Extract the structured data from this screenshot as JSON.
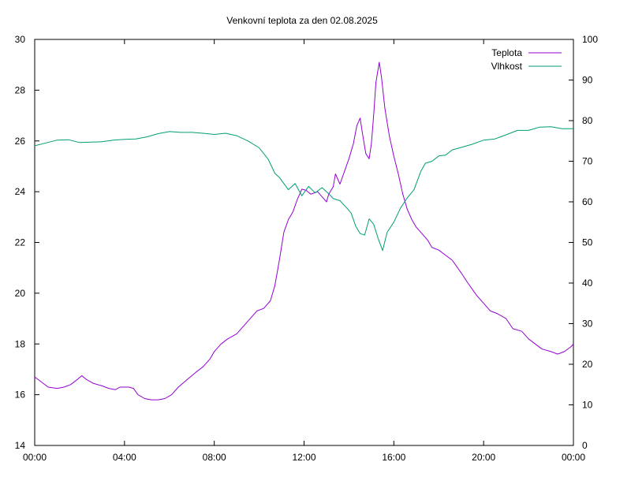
{
  "chart_data": {
    "type": "line",
    "title": "Venkovní teplota za den 02.08.2025",
    "xlabel": "",
    "ylabel": "",
    "y2label": "",
    "x_ticks": [
      "00:00",
      "04:00",
      "08:00",
      "12:00",
      "16:00",
      "20:00",
      "00:00"
    ],
    "x_range_hours": [
      0,
      24
    ],
    "y_ticks": [
      "14",
      "16",
      "18",
      "20",
      "22",
      "24",
      "26",
      "28",
      "30"
    ],
    "ylim": [
      14,
      30
    ],
    "y2_ticks": [
      "0",
      "10",
      "20",
      "30",
      "40",
      "50",
      "60",
      "70",
      "80",
      "90",
      "100"
    ],
    "y2lim": [
      0,
      100
    ],
    "grid": false,
    "legend_position": "top-right",
    "series": [
      {
        "name": "Teplota",
        "axis": "left",
        "color": "#9400d3",
        "points": [
          [
            0.0,
            16.7
          ],
          [
            0.3,
            16.5
          ],
          [
            0.6,
            16.3
          ],
          [
            1.0,
            16.25
          ],
          [
            1.3,
            16.3
          ],
          [
            1.6,
            16.4
          ],
          [
            1.9,
            16.6
          ],
          [
            2.1,
            16.75
          ],
          [
            2.3,
            16.6
          ],
          [
            2.6,
            16.45
          ],
          [
            3.0,
            16.35
          ],
          [
            3.3,
            16.25
          ],
          [
            3.6,
            16.2
          ],
          [
            3.8,
            16.3
          ],
          [
            4.2,
            16.3
          ],
          [
            4.4,
            16.25
          ],
          [
            4.6,
            16.0
          ],
          [
            4.9,
            15.85
          ],
          [
            5.2,
            15.8
          ],
          [
            5.5,
            15.8
          ],
          [
            5.8,
            15.85
          ],
          [
            6.1,
            16.0
          ],
          [
            6.4,
            16.3
          ],
          [
            6.8,
            16.6
          ],
          [
            7.2,
            16.9
          ],
          [
            7.5,
            17.1
          ],
          [
            7.8,
            17.4
          ],
          [
            8.0,
            17.7
          ],
          [
            8.3,
            18.0
          ],
          [
            8.6,
            18.2
          ],
          [
            9.0,
            18.4
          ],
          [
            9.3,
            18.7
          ],
          [
            9.6,
            19.0
          ],
          [
            9.9,
            19.3
          ],
          [
            10.2,
            19.4
          ],
          [
            10.5,
            19.7
          ],
          [
            10.7,
            20.3
          ],
          [
            10.9,
            21.3
          ],
          [
            11.1,
            22.4
          ],
          [
            11.3,
            22.9
          ],
          [
            11.5,
            23.2
          ],
          [
            11.7,
            23.7
          ],
          [
            11.9,
            24.1
          ],
          [
            12.1,
            24.05
          ],
          [
            12.3,
            23.9
          ],
          [
            12.6,
            24.0
          ],
          [
            12.8,
            23.8
          ],
          [
            13.0,
            23.6
          ],
          [
            13.1,
            23.9
          ],
          [
            13.3,
            24.2
          ],
          [
            13.4,
            24.7
          ],
          [
            13.6,
            24.3
          ],
          [
            13.8,
            24.8
          ],
          [
            14.0,
            25.3
          ],
          [
            14.2,
            25.9
          ],
          [
            14.35,
            26.6
          ],
          [
            14.5,
            26.9
          ],
          [
            14.6,
            26.3
          ],
          [
            14.75,
            25.5
          ],
          [
            14.9,
            25.3
          ],
          [
            15.0,
            25.9
          ],
          [
            15.1,
            27.0
          ],
          [
            15.2,
            28.3
          ],
          [
            15.35,
            29.1
          ],
          [
            15.45,
            28.5
          ],
          [
            15.6,
            27.3
          ],
          [
            15.8,
            26.2
          ],
          [
            16.0,
            25.4
          ],
          [
            16.2,
            24.7
          ],
          [
            16.4,
            23.9
          ],
          [
            16.6,
            23.3
          ],
          [
            16.8,
            22.9
          ],
          [
            17.0,
            22.6
          ],
          [
            17.3,
            22.3
          ],
          [
            17.5,
            22.1
          ],
          [
            17.7,
            21.8
          ],
          [
            18.0,
            21.7
          ],
          [
            18.3,
            21.5
          ],
          [
            18.6,
            21.3
          ],
          [
            19.0,
            20.8
          ],
          [
            19.3,
            20.4
          ],
          [
            19.7,
            19.9
          ],
          [
            20.0,
            19.6
          ],
          [
            20.3,
            19.3
          ],
          [
            20.6,
            19.2
          ],
          [
            21.0,
            19.0
          ],
          [
            21.3,
            18.6
          ],
          [
            21.7,
            18.5
          ],
          [
            22.0,
            18.2
          ],
          [
            22.3,
            18.0
          ],
          [
            22.6,
            17.8
          ],
          [
            23.0,
            17.7
          ],
          [
            23.3,
            17.6
          ],
          [
            23.6,
            17.7
          ],
          [
            23.9,
            17.9
          ],
          [
            24.0,
            18.0
          ]
        ]
      },
      {
        "name": "Vlhkost",
        "axis": "right",
        "color": "#009e73",
        "points": [
          [
            0.0,
            73.8
          ],
          [
            0.5,
            74.5
          ],
          [
            1.0,
            75.2
          ],
          [
            1.5,
            75.3
          ],
          [
            2.0,
            74.6
          ],
          [
            2.5,
            74.7
          ],
          [
            3.0,
            74.8
          ],
          [
            3.5,
            75.2
          ],
          [
            4.0,
            75.4
          ],
          [
            4.5,
            75.5
          ],
          [
            5.0,
            76.0
          ],
          [
            5.5,
            76.8
          ],
          [
            6.0,
            77.3
          ],
          [
            6.5,
            77.1
          ],
          [
            7.0,
            77.1
          ],
          [
            7.5,
            76.9
          ],
          [
            8.0,
            76.6
          ],
          [
            8.5,
            76.9
          ],
          [
            9.0,
            76.3
          ],
          [
            9.5,
            75.0
          ],
          [
            10.0,
            73.3
          ],
          [
            10.4,
            70.5
          ],
          [
            10.7,
            67.0
          ],
          [
            10.9,
            66.0
          ],
          [
            11.1,
            64.5
          ],
          [
            11.3,
            63.0
          ],
          [
            11.6,
            64.5
          ],
          [
            11.9,
            61.5
          ],
          [
            12.2,
            63.8
          ],
          [
            12.5,
            62.2
          ],
          [
            12.8,
            63.5
          ],
          [
            13.1,
            62.0
          ],
          [
            13.3,
            60.8
          ],
          [
            13.6,
            60.3
          ],
          [
            13.9,
            58.5
          ],
          [
            14.1,
            57.2
          ],
          [
            14.3,
            54.0
          ],
          [
            14.5,
            52.2
          ],
          [
            14.7,
            51.8
          ],
          [
            14.9,
            55.8
          ],
          [
            15.1,
            54.5
          ],
          [
            15.3,
            51.0
          ],
          [
            15.5,
            48.0
          ],
          [
            15.7,
            52.5
          ],
          [
            16.0,
            55.0
          ],
          [
            16.3,
            58.5
          ],
          [
            16.6,
            61.0
          ],
          [
            16.9,
            63.0
          ],
          [
            17.2,
            67.5
          ],
          [
            17.4,
            69.5
          ],
          [
            17.7,
            70.0
          ],
          [
            18.0,
            71.3
          ],
          [
            18.3,
            71.5
          ],
          [
            18.6,
            72.8
          ],
          [
            19.0,
            73.4
          ],
          [
            19.5,
            74.2
          ],
          [
            20.0,
            75.2
          ],
          [
            20.5,
            75.5
          ],
          [
            21.0,
            76.5
          ],
          [
            21.5,
            77.6
          ],
          [
            22.0,
            77.6
          ],
          [
            22.5,
            78.4
          ],
          [
            23.0,
            78.5
          ],
          [
            23.5,
            78.0
          ],
          [
            24.0,
            78.0
          ]
        ]
      }
    ]
  }
}
